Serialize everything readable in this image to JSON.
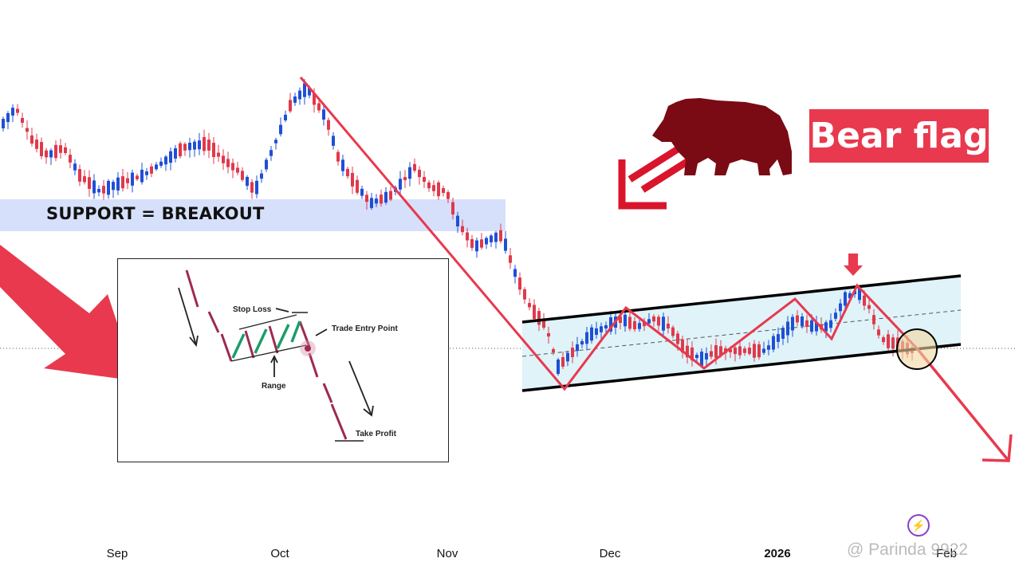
{
  "chart_data": {
    "type": "candlestick",
    "title": "Bear flag",
    "x_ticks": [
      "Sep",
      "Oct",
      "Nov",
      "Dec",
      "2026",
      "Feb"
    ],
    "support_zone_label": "SUPPORT = BREAKOUT",
    "pattern": "bear flag",
    "colors": {
      "up": "#1f4fd6",
      "down": "#e0394b",
      "channel_fill": "#dff3f8",
      "support_fill": "#d6e0fb",
      "accent": "#e8394e",
      "bear": "#7a0a14"
    },
    "annotations": [
      "trend line",
      "flag channel",
      "zigzag",
      "entry circle",
      "projection arrow",
      "breakout arrow"
    ]
  },
  "inset": {
    "stop_loss": "Stop Loss",
    "trade_entry_point": "Trade Entry Point",
    "range": "Range",
    "take_profit": "Take Profit"
  },
  "watermark": "@ Parinda 9922",
  "icons": {
    "bear": "bear-silhouette-icon",
    "down_arrow": "down-arrow-icon",
    "flash": "flash-icon"
  }
}
